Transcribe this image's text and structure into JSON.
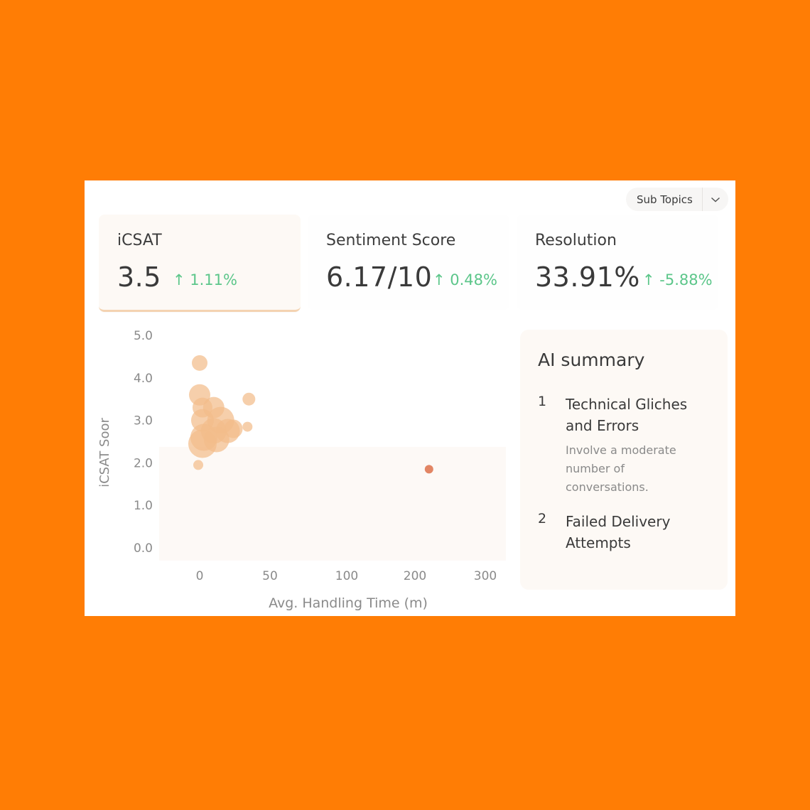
{
  "filter": {
    "selected": "Sub Topics"
  },
  "metrics": [
    {
      "title": "iCSAT",
      "value": "3.5",
      "delta": "↑ 1.11%"
    },
    {
      "title": "Sentiment Score",
      "value": "6.17/10",
      "delta": "↑ 0.48%"
    },
    {
      "title": "Resolution",
      "value": "33.91%",
      "delta": "↑ -5.88%"
    }
  ],
  "summary": {
    "title": "AI summary",
    "items": [
      {
        "num": "1",
        "head": "Technical Gliches and Errors",
        "desc": "Involve a moderate number of conversations."
      },
      {
        "num": "2",
        "head": "Failed Delivery Attempts",
        "desc": ""
      }
    ]
  },
  "colors": {
    "bubble": "#F2BC8A",
    "highlight": "#E07E5C",
    "delta_positive": "#5CC68A",
    "background": "#FF7D05"
  },
  "chart_data": {
    "type": "scatter",
    "xlabel": "Avg. Handling Time (m)",
    "ylabel": "iCSAT Soor",
    "x_ticks": [
      "0",
      "50",
      "100",
      "200",
      "300"
    ],
    "y_ticks": [
      "5.0",
      "4.0",
      "3.0",
      "2.0",
      "1.0",
      "0.0"
    ],
    "ylim": [
      0,
      5
    ],
    "points": [
      {
        "x": 0,
        "y": 4.35,
        "size": 11
      },
      {
        "x": 0,
        "y": 3.6,
        "size": 15
      },
      {
        "x": 2,
        "y": 3.3,
        "size": 14
      },
      {
        "x": 10,
        "y": 3.3,
        "size": 15
      },
      {
        "x": 2,
        "y": 3.0,
        "size": 16
      },
      {
        "x": 15,
        "y": 3.0,
        "size": 19
      },
      {
        "x": 24,
        "y": 2.8,
        "size": 13
      },
      {
        "x": 10,
        "y": 2.75,
        "size": 18
      },
      {
        "x": 20,
        "y": 2.75,
        "size": 17
      },
      {
        "x": 3,
        "y": 2.6,
        "size": 19
      },
      {
        "x": 12,
        "y": 2.55,
        "size": 18
      },
      {
        "x": 2,
        "y": 2.45,
        "size": 20
      },
      {
        "x": 35,
        "y": 3.5,
        "size": 9
      },
      {
        "x": 34,
        "y": 2.85,
        "size": 7
      },
      {
        "x": -1,
        "y": 1.95,
        "size": 7
      },
      {
        "x": 220,
        "y": 1.85,
        "size": 6,
        "highlight": true
      }
    ]
  }
}
